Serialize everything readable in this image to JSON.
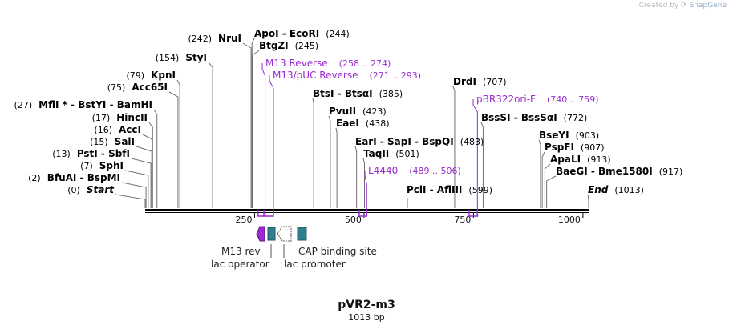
{
  "header": {
    "credit_prefix": "Created by",
    "credit_brand": "SnapGene"
  },
  "plasmid": {
    "name": "pVR2-m3",
    "length_label": "1013 bp",
    "length_bp": 1013
  },
  "ruler": {
    "ticks": [
      {
        "label": "250",
        "bp": 250
      },
      {
        "label": "500",
        "bp": 500
      },
      {
        "label": "750",
        "bp": 750
      },
      {
        "label": "1000",
        "bp": 1000
      }
    ]
  },
  "colors": {
    "enzyme": "#000000",
    "primer": "#9a2bd1",
    "feature_teal": "#2e7e8f",
    "feature_purple": "#9a2bd1",
    "line": "#707070",
    "axis": "#000000"
  },
  "enzymes": [
    {
      "name": "Start",
      "position": "(0)",
      "bp": 0,
      "italic": true
    },
    {
      "name": "BfuAI  -  BspMI",
      "position": "(2)",
      "bp": 2
    },
    {
      "name": "SphI",
      "position": "(7)",
      "bp": 7
    },
    {
      "name": "PstI  -  SbfI",
      "position": "(13)",
      "bp": 13
    },
    {
      "name": "SalI",
      "position": "(15)",
      "bp": 15
    },
    {
      "name": "AccI",
      "position": "(16)",
      "bp": 16
    },
    {
      "name": "HincII",
      "position": "(17)",
      "bp": 17
    },
    {
      "name": "MflI *  -  BstYI  -  BamHI",
      "position": "(27)",
      "bp": 27
    },
    {
      "name": "Acc65I",
      "position": "(75)",
      "bp": 75
    },
    {
      "name": "KpnI",
      "position": "(79)",
      "bp": 79
    },
    {
      "name": "StyI",
      "position": "(154)",
      "bp": 154
    },
    {
      "name": "NruI",
      "position": "(242)",
      "bp": 242
    },
    {
      "name": "BtgZI",
      "position": "(245)",
      "bp": 245
    },
    {
      "name": "ApoI  -  EcoRI",
      "position": "(244)",
      "bp": 244
    },
    {
      "name": "BtsI  -  BtsαI",
      "position": "(385)",
      "bp": 385
    },
    {
      "name": "PvuII",
      "position": "(423)",
      "bp": 423
    },
    {
      "name": "EaeI",
      "position": "(438)",
      "bp": 438
    },
    {
      "name": "EarI  -  SapI  -  BspQI",
      "position": "(483)",
      "bp": 483
    },
    {
      "name": "TaqII",
      "position": "(501)",
      "bp": 501
    },
    {
      "name": "PciI  -  AflIII",
      "position": "(599)",
      "bp": 599
    },
    {
      "name": "DrdI",
      "position": "(707)",
      "bp": 707
    },
    {
      "name": "BssSI  -  BssSαI",
      "position": "(772)",
      "bp": 772
    },
    {
      "name": "BseYI",
      "position": "(903)",
      "bp": 903
    },
    {
      "name": "PspFI",
      "position": "(907)",
      "bp": 907
    },
    {
      "name": "ApaLI",
      "position": "(913)",
      "bp": 913
    },
    {
      "name": "BaeGI  -  Bme1580I",
      "position": "(917)",
      "bp": 917
    },
    {
      "name": "End",
      "position": "(1013)",
      "bp": 1013,
      "italic": true
    }
  ],
  "primers": [
    {
      "name": "M13 Reverse",
      "range": "(258 .. 274)",
      "start": 258,
      "end": 274
    },
    {
      "name": "M13/pUC Reverse",
      "range": "(271 .. 293)",
      "start": 271,
      "end": 293
    },
    {
      "name": "pBR322ori-F",
      "range": "(740 .. 759)",
      "start": 740,
      "end": 759
    },
    {
      "name": "L4440",
      "range": "(489 .. 506)",
      "start": 489,
      "end": 506
    }
  ],
  "features": [
    {
      "name": "M13 rev",
      "kind": "arrow-left",
      "color": "#9a2bd1"
    },
    {
      "name": "lac operator",
      "kind": "box",
      "color": "#2e7e8f"
    },
    {
      "name": "lac promoter",
      "kind": "arrow-left-outline",
      "color": "#ffffff"
    },
    {
      "name": "CAP binding site",
      "kind": "box",
      "color": "#2e7e8f"
    }
  ]
}
